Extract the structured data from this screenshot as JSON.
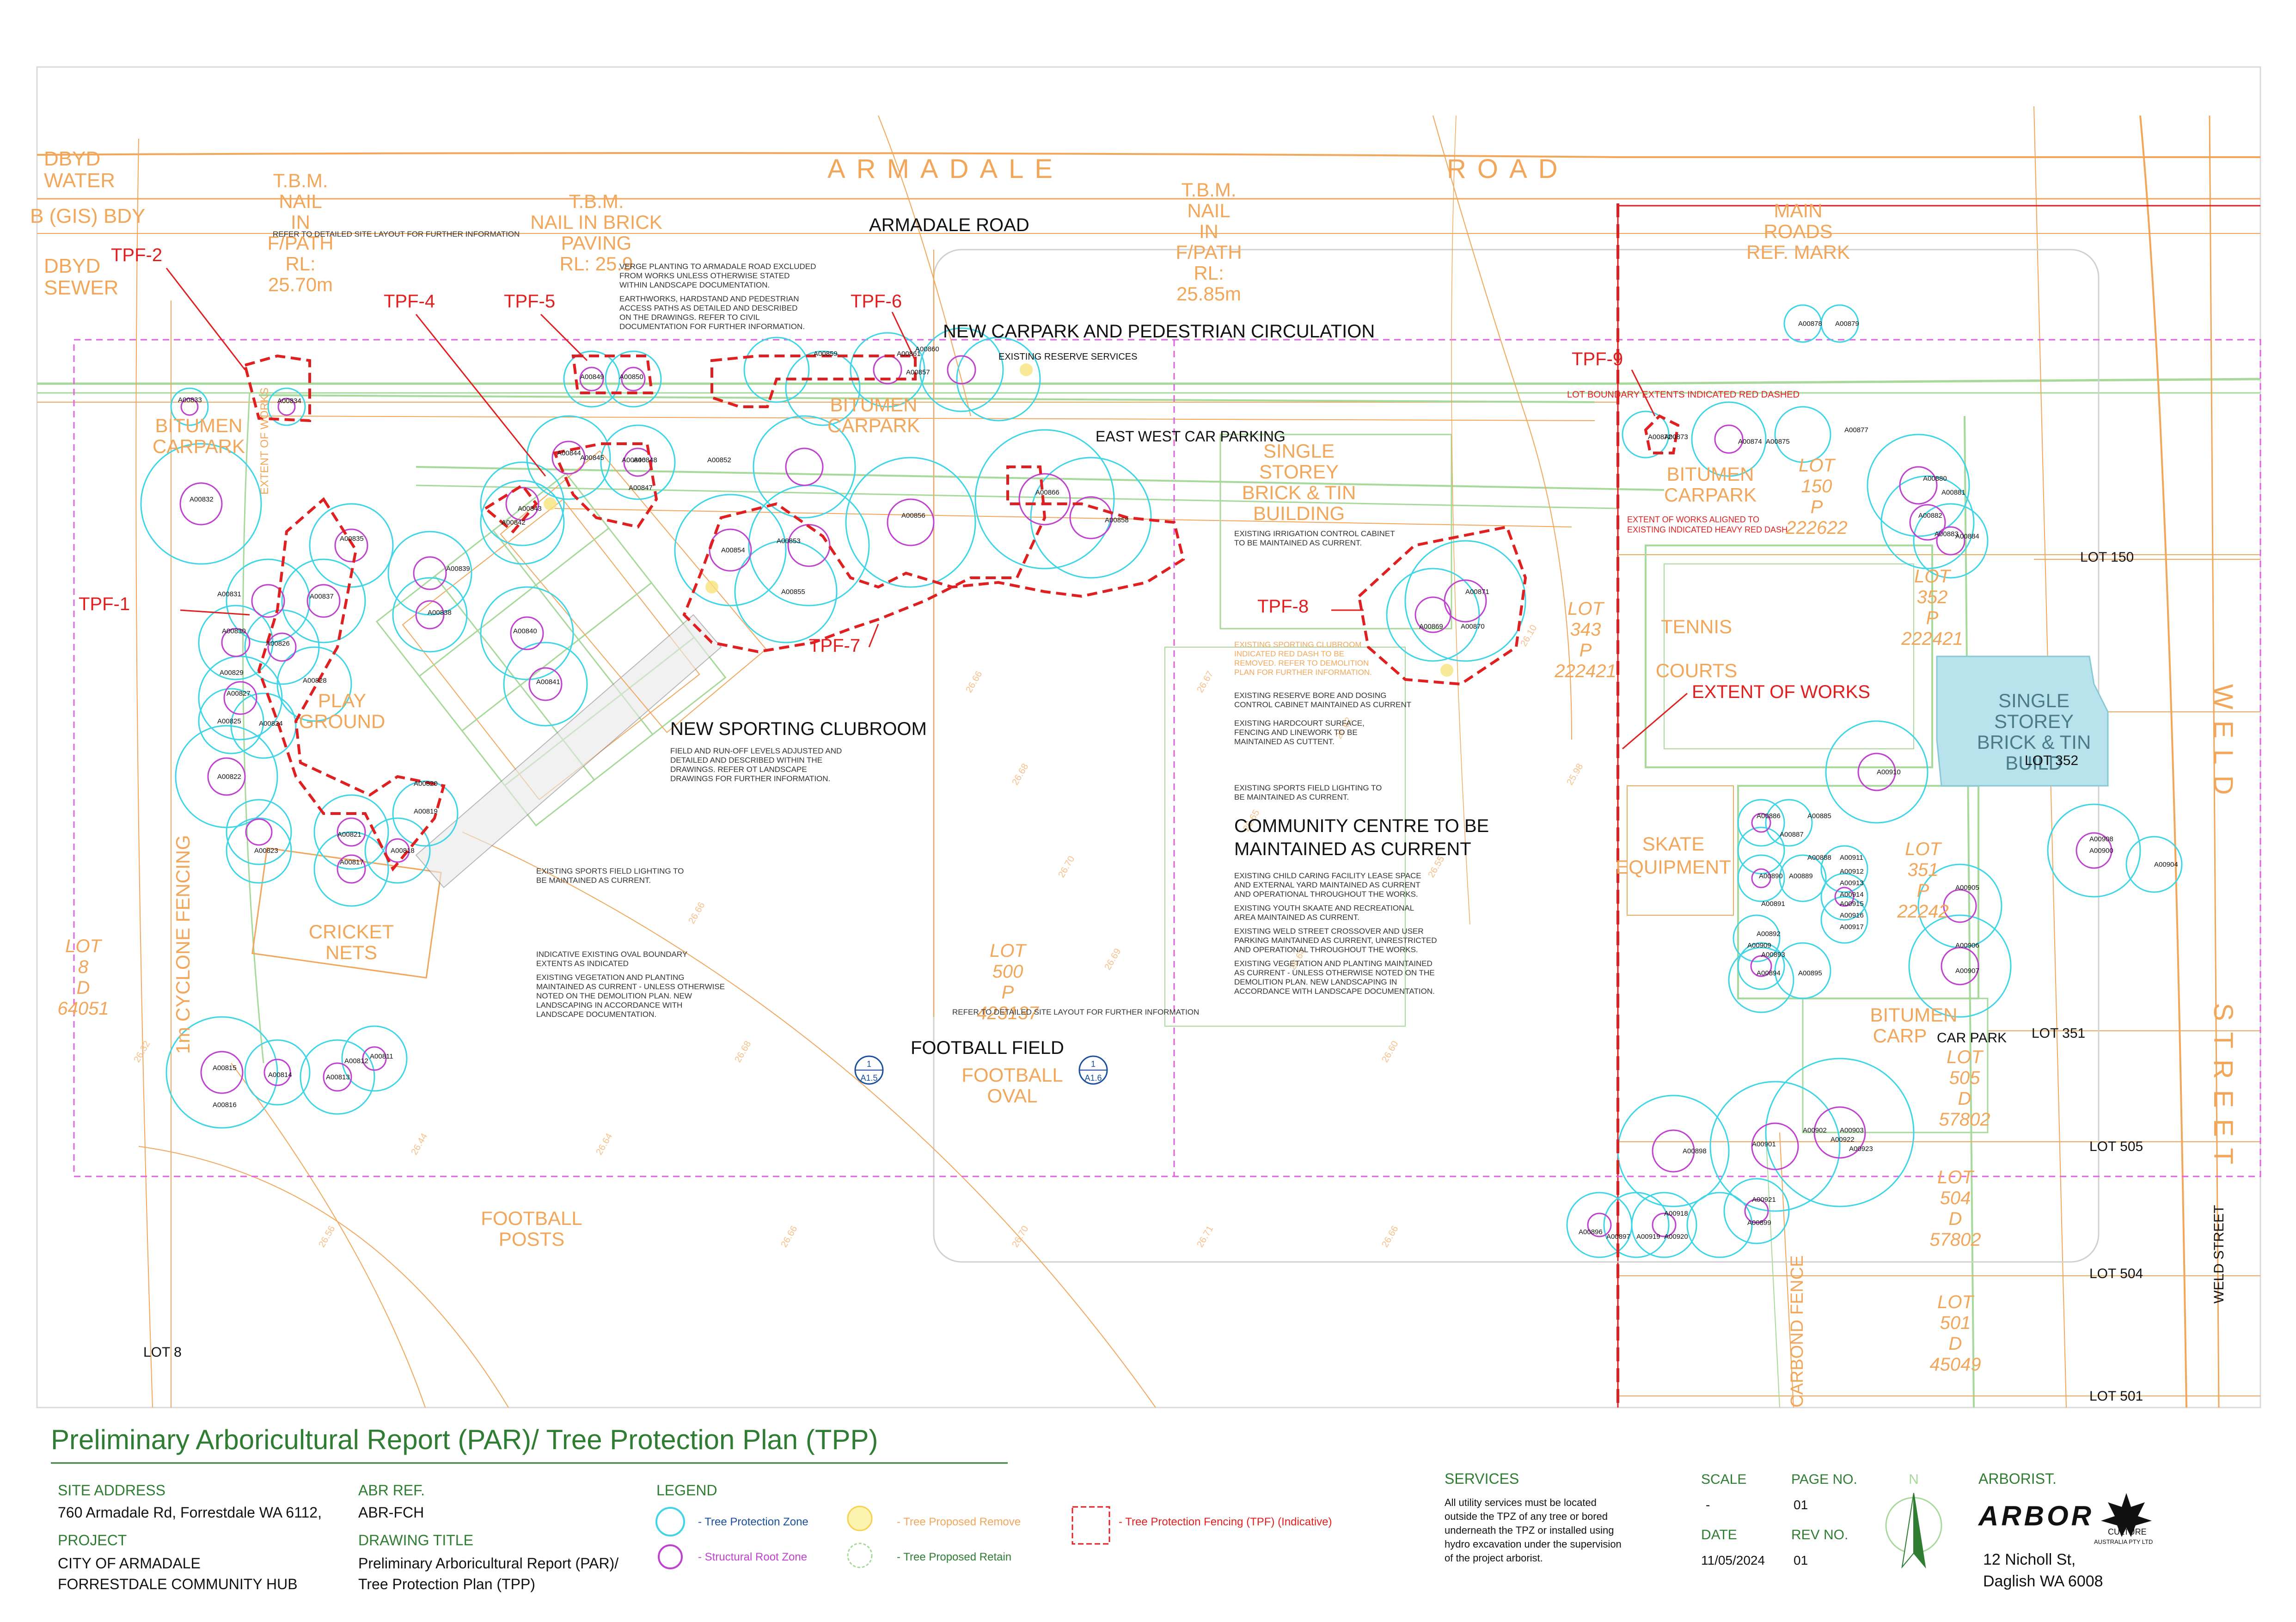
{
  "plan": {
    "road_name_spaced_1": "ARMADALE",
    "road_name_spaced_2": "ROAD",
    "road_name": "ARMADALE ROAD",
    "street_name_vertical_1": "WELD",
    "street_name_vertical_2": "STREET",
    "weld_street_label": "WELD STREET",
    "dbyd_water": [
      "DBYD",
      "WATER"
    ],
    "gis_bdy": "B (GIS) BDY",
    "dbyd_sewer": [
      "DBYD",
      "SEWER"
    ],
    "tbm_1": [
      "T.B.M.",
      "NAIL",
      "IN",
      "F/PATH",
      "RL:",
      "25.70m"
    ],
    "tbm_2": [
      "T.B.M.",
      "NAIL IN BRICK",
      "PAVING",
      "RL: 25.9"
    ],
    "tbm_3": [
      "T.B.M.",
      "NAIL",
      "IN",
      "F/PATH",
      "RL:",
      "25.85m"
    ],
    "main_roads": [
      "MAIN",
      "ROADS",
      "REF. MARK"
    ],
    "new_carpark": "NEW CARPARK AND PEDESTRIAN CIRCULATION",
    "east_west_parking": "EAST WEST  CAR PARKING",
    "existing_reserve_services": "EXISTING RESERVE SERVICES",
    "lot_boundary_note": "LOT BOUNDARY EXTENTS INDICATED RED DASHED",
    "extent_aligned_note": [
      "EXTENT OF WORKS ALIGNED TO",
      "EXISTING INDICATED HEAVY RED DASH"
    ],
    "bitumen_carpark_1": [
      "BITUMEN",
      "CARPARK"
    ],
    "bitumen_carpark_2": [
      "BITUMEN",
      "CARPARK"
    ],
    "bitumen_carpark_3": [
      "BITUMEN",
      "CARPARK"
    ],
    "bitumen_carpark_4": [
      "BITUMEN",
      "CARP"
    ],
    "car_park": "CAR PARK",
    "single_storey_1": [
      "SINGLE",
      "STOREY",
      "BRICK & TIN",
      "BUILDING"
    ],
    "single_storey_2": [
      "SINGLE",
      "STOREY",
      "BRICK & TIN",
      "BUILD"
    ],
    "tennis_courts": [
      "TENNIS",
      "COURTS"
    ],
    "skate_equipment": [
      "SKATE",
      "EQUIPMENT"
    ],
    "play_ground": [
      "PLAY",
      "GROUND"
    ],
    "cricket_nets": [
      "CRICKET",
      "NETS"
    ],
    "football_posts": [
      "FOOTBALL",
      "POSTS"
    ],
    "football_field": "FOOTBALL FIELD",
    "football_oval": [
      "FOOTBALL",
      "OVAL"
    ],
    "new_sporting_clubroom": "NEW SPORTING CLUBROOM",
    "community_centre": [
      "COMMUNITY CENTRE TO BE",
      "MAINTAINED AS CURRENT"
    ],
    "extent_of_works": "EXTENT OF WORKS",
    "extent_of_works_vertical": "EXTENT OF WORKS",
    "cyclone_fencing": "1m CYCLONE FENCING",
    "carbond_fence": "CARBOND FENCE",
    "lot_labels": {
      "lot_8_big": [
        "LOT",
        "8",
        "D",
        "64051"
      ],
      "lot_8": "LOT 8",
      "lot_500": [
        "LOT",
        "500",
        "P",
        "423137"
      ],
      "lot_343": [
        "LOT",
        "343",
        "P",
        "222421"
      ],
      "lot_150_big": [
        "LOT",
        "150",
        "P",
        "222622"
      ],
      "lot_352_big": [
        "LOT",
        "352",
        "P",
        "222421"
      ],
      "lot_351_big": [
        "LOT",
        "351",
        "P",
        "22242"
      ],
      "lot_505_big": [
        "LOT",
        "505",
        "D",
        "57802"
      ],
      "lot_504_big": [
        "LOT",
        "504",
        "D",
        "57802"
      ],
      "lot_501_big": [
        "LOT",
        "501",
        "D",
        "45049"
      ],
      "lot_150": "LOT 150",
      "lot_352": "LOT 352",
      "lot_351": "LOT 351",
      "lot_505": "LOT 505",
      "lot_504": "LOT 504",
      "lot_501": "LOT 501"
    },
    "tpf_labels": [
      "TPF-1",
      "TPF-2",
      "TPF-4",
      "TPF-5",
      "TPF-6",
      "TPF-7",
      "TPF-8",
      "TPF-9"
    ],
    "notes_top": [
      "REFER TO DETAILED SITE LAYOUT FOR FURTHER INFORMATION",
      "VERGE PLANTING TO ARMADALE ROAD EXCLUDED",
      "FROM WORKS UNLESS OTHERWISE STATED",
      "WITHIN LANDSCAPE DOCUMENTATION.",
      "EARTHWORKS, HARDSTAND AND PEDESTRIAN",
      "ACCESS PATHS AS DETAILED AND DESCRIBED",
      "ON THE DRAWINGS. REFER TO CIVIL",
      "DOCUMENTATION FOR FURTHER INFORMATION."
    ],
    "notes_irrigation": [
      "EXISTING IRRIGATION CONTROL CABINET",
      "TO BE MAINTAINED AS CURRENT."
    ],
    "notes_right": [
      "EXISTING SPORTING CLUBROOM",
      "INDICATED RED DASH TO BE",
      "REMOVED. REFER TO DEMOLITION",
      "PLAN FOR FURTHER INFORMATION.",
      "EXISTING RESERVE BORE AND DOSING",
      "CONTROL CABINET MAINTAINED AS CURRENT",
      "EXISTING HARDCOURT SURFACE,",
      "FENCING AND LINEWORK TO BE",
      "MAINTAINED AS CUTTENT.",
      "EXISTING SPORTS FIELD LIGHTING TO",
      "BE MAINTAINED AS CURRENT."
    ],
    "notes_community": [
      "EXISTING CHILD CARING FACILITY LEASE SPACE",
      "AND EXTERNAL YARD MAINTAINED AS CURRENT",
      "AND OPERATIONAL THROUGHOUT THE WORKS.",
      "EXISTING YOUTH SKAATE AND RECREATIONAL",
      "AREA MAINTAINED AS CURRENT.",
      "EXISTING WELD STREET CROSSOVER AND USER",
      "PARKING MAINTAINED AS CURRENT, UNRESTRICTED",
      "AND OPERATIONAL THROUGHOUT THE WORKS.",
      "EXISTING VEGETATION AND PLANTING MAINTAINED",
      "AS CURRENT - UNLESS OTHERWISE NOTED ON THE",
      "DEMOLITION PLAN. NEW LANDSCAPING IN",
      "ACCORDANCE WITH LANDSCAPE DOCUMENTATION."
    ],
    "notes_clubroom": [
      "FIELD AND RUN-OFF LEVELS ADJUSTED AND",
      "DETAILED AND DESCRIBED WITHIN THE",
      "DRAWINGS. REFER OT LANDSCAPE",
      "DRAWINGS FOR FURTHER INFORMATION."
    ],
    "notes_lighting": [
      "EXISTING SPORTS FIELD LIGHTING TO",
      "BE MAINTAINED AS CURRENT."
    ],
    "notes_oval": [
      "INDICATIVE EXISTING OVAL BOUNDARY",
      "EXTENTS AS INDICATED",
      "EXISTING VEGETATION AND PLANTING",
      "MAINTAINED AS CURRENT - UNLESS OTHERWISE",
      "NOTED ON THE DEMOLITION PLAN. NEW",
      "LANDSCAPING IN ACCORDANCE WITH",
      "LANDSCAPE DOCUMENTATION."
    ],
    "note_refer_detailed": "REFER TO DETAILED SITE LAYOUT FOR FURTHER INFORMATION",
    "section_marker": {
      "num": "1",
      "sheet_1": "A1.5",
      "sheet_2": "A1.6"
    }
  },
  "trees": [
    {
      "id": "A00833",
      "tpz": 1,
      "srz": 1
    },
    {
      "id": "A00834",
      "tpz": 1,
      "srz": 1
    },
    {
      "id": "A00832",
      "tpz": 1,
      "srz": 1
    },
    {
      "id": "A00835",
      "tpz": 1,
      "srz": 1
    },
    {
      "id": "A00831",
      "tpz": 1,
      "srz": 1
    },
    {
      "id": "A00837",
      "tpz": 1,
      "srz": 1
    },
    {
      "id": "A00830",
      "tpz": 1,
      "srz": 1
    },
    {
      "id": "A00826",
      "tpz": 1,
      "srz": 1
    },
    {
      "id": "A00829",
      "tpz": 1,
      "srz": 1
    },
    {
      "id": "A00827",
      "tpz": 1,
      "srz": 1
    },
    {
      "id": "A00828",
      "tpz": 1,
      "srz": 1
    },
    {
      "id": "A00825",
      "tpz": 1,
      "srz": 1
    },
    {
      "id": "A00824",
      "tpz": 1,
      "srz": 1
    },
    {
      "id": "A00822",
      "tpz": 1,
      "srz": 1
    },
    {
      "id": "A00821",
      "tpz": 1,
      "srz": 1
    },
    {
      "id": "A00823",
      "tpz": 1,
      "srz": 1
    },
    {
      "id": "A00817",
      "tpz": 1,
      "srz": 1
    },
    {
      "id": "A00818",
      "tpz": 1,
      "srz": 1
    },
    {
      "id": "A00819",
      "tpz": 1,
      "srz": 1
    },
    {
      "id": "A00820",
      "tpz": 1,
      "srz": 1
    },
    {
      "id": "A00815",
      "tpz": 1,
      "srz": 1
    },
    {
      "id": "A00816",
      "tpz": 1,
      "srz": 1
    },
    {
      "id": "A00814",
      "tpz": 1,
      "srz": 1
    },
    {
      "id": "A00813",
      "tpz": 1,
      "srz": 1
    },
    {
      "id": "A00812",
      "tpz": 1,
      "srz": 1
    },
    {
      "id": "A00811",
      "tpz": 1,
      "srz": 1
    },
    {
      "id": "A00839",
      "tpz": 1,
      "srz": 1
    },
    {
      "id": "A00838",
      "tpz": 1,
      "srz": 1
    },
    {
      "id": "A00840",
      "tpz": 1,
      "srz": 1
    },
    {
      "id": "A00841",
      "tpz": 1,
      "srz": 1
    },
    {
      "id": "A00842",
      "tpz": 1,
      "srz": 1
    },
    {
      "id": "A00843",
      "tpz": 1,
      "srz": 1
    },
    {
      "id": "A00844",
      "tpz": 1,
      "srz": 1
    },
    {
      "id": "A00845",
      "tpz": 1,
      "srz": 1
    },
    {
      "id": "A00846",
      "tpz": 1,
      "srz": 1
    },
    {
      "id": "A00847",
      "tpz": 1,
      "srz": 1
    },
    {
      "id": "A00848",
      "tpz": 1,
      "srz": 1
    },
    {
      "id": "A00849",
      "tpz": 1,
      "srz": 1
    },
    {
      "id": "A00850",
      "tpz": 1,
      "srz": 1
    },
    {
      "id": "A00852",
      "tpz": 1,
      "srz": 1
    },
    {
      "id": "A00853",
      "tpz": 1,
      "srz": 1
    },
    {
      "id": "A00854",
      "tpz": 1,
      "srz": 1
    },
    {
      "id": "A00855",
      "tpz": 1,
      "srz": 1
    },
    {
      "id": "A00856",
      "tpz": 1,
      "srz": 1
    },
    {
      "id": "A00857",
      "tpz": 1,
      "srz": 1
    },
    {
      "id": "A00858",
      "tpz": 1,
      "srz": 1
    },
    {
      "id": "A00859",
      "tpz": 1,
      "srz": 1
    },
    {
      "id": "A00860",
      "tpz": 1,
      "srz": 1
    },
    {
      "id": "A00861",
      "tpz": 1,
      "srz": 1
    },
    {
      "id": "A00866",
      "tpz": 1,
      "srz": 1
    },
    {
      "id": "A00869",
      "tpz": 1,
      "srz": 1
    },
    {
      "id": "A00870",
      "tpz": 1,
      "srz": 1
    },
    {
      "id": "A00871",
      "tpz": 1,
      "srz": 1
    },
    {
      "id": "A00872",
      "tpz": 1,
      "srz": 1
    },
    {
      "id": "A00873",
      "tpz": 1,
      "srz": 1
    },
    {
      "id": "A00874",
      "tpz": 1,
      "srz": 1
    },
    {
      "id": "A00875",
      "tpz": 1,
      "srz": 1
    },
    {
      "id": "A00877",
      "tpz": 1,
      "srz": 1
    },
    {
      "id": "A00878",
      "tpz": 1,
      "srz": 1
    },
    {
      "id": "A00879",
      "tpz": 1,
      "srz": 1
    },
    {
      "id": "A00880",
      "tpz": 1,
      "srz": 1
    },
    {
      "id": "A00881",
      "tpz": 1,
      "srz": 1
    },
    {
      "id": "A00882",
      "tpz": 1,
      "srz": 1
    },
    {
      "id": "A00883",
      "tpz": 1,
      "srz": 1
    },
    {
      "id": "A00884",
      "tpz": 1,
      "srz": 1
    },
    {
      "id": "A00885",
      "tpz": 1,
      "srz": 1
    },
    {
      "id": "A00886",
      "tpz": 1,
      "srz": 1
    },
    {
      "id": "A00887",
      "tpz": 1,
      "srz": 1
    },
    {
      "id": "A00888",
      "tpz": 1,
      "srz": 1
    },
    {
      "id": "A00889",
      "tpz": 1,
      "srz": 1
    },
    {
      "id": "A00890",
      "tpz": 1,
      "srz": 1
    },
    {
      "id": "A00891",
      "tpz": 1,
      "srz": 1
    },
    {
      "id": "A00892",
      "tpz": 1,
      "srz": 1
    },
    {
      "id": "A00893",
      "tpz": 1,
      "srz": 1
    },
    {
      "id": "A00894",
      "tpz": 1,
      "srz": 1
    },
    {
      "id": "A00895",
      "tpz": 1,
      "srz": 1
    },
    {
      "id": "A00896",
      "tpz": 1,
      "srz": 1
    },
    {
      "id": "A00897",
      "tpz": 1,
      "srz": 1
    },
    {
      "id": "A00898",
      "tpz": 1,
      "srz": 1
    },
    {
      "id": "A00899",
      "tpz": 1,
      "srz": 1
    },
    {
      "id": "A00900",
      "tpz": 1,
      "srz": 1
    },
    {
      "id": "A00901",
      "tpz": 1,
      "srz": 1
    },
    {
      "id": "A00902",
      "tpz": 1,
      "srz": 1
    },
    {
      "id": "A00903",
      "tpz": 1,
      "srz": 1
    },
    {
      "id": "A00904",
      "tpz": 1,
      "srz": 1
    },
    {
      "id": "A00905",
      "tpz": 1,
      "srz": 1
    },
    {
      "id": "A00906",
      "tpz": 1,
      "srz": 1
    },
    {
      "id": "A00907",
      "tpz": 1,
      "srz": 1
    },
    {
      "id": "A00908",
      "tpz": 1,
      "srz": 1
    },
    {
      "id": "A00909",
      "tpz": 1,
      "srz": 1
    },
    {
      "id": "A00910",
      "tpz": 1,
      "srz": 1
    },
    {
      "id": "A00911",
      "tpz": 1,
      "srz": 1
    },
    {
      "id": "A00912",
      "tpz": 1,
      "srz": 1
    },
    {
      "id": "A00913",
      "tpz": 1,
      "srz": 1
    },
    {
      "id": "A00914",
      "tpz": 1,
      "srz": 1
    },
    {
      "id": "A00915",
      "tpz": 1,
      "srz": 1
    },
    {
      "id": "A00916",
      "tpz": 1,
      "srz": 1
    },
    {
      "id": "A00917",
      "tpz": 1,
      "srz": 1
    },
    {
      "id": "A00918",
      "tpz": 1,
      "srz": 1
    },
    {
      "id": "A00919",
      "tpz": 1,
      "srz": 1
    },
    {
      "id": "A00920",
      "tpz": 1,
      "srz": 1
    },
    {
      "id": "A00921",
      "tpz": 1,
      "srz": 1
    },
    {
      "id": "A00922",
      "tpz": 1,
      "srz": 1
    },
    {
      "id": "A00923",
      "tpz": 1,
      "srz": 1
    }
  ],
  "title_block": {
    "title": "Preliminary Arboricultural Report (PAR)/ Tree Protection Plan (TPP)",
    "site_address_label": "SITE ADDRESS",
    "site_address": "760 Armadale Rd, Forrestdale WA 6112,",
    "abr_ref_label": "ABR REF.",
    "abr_ref": "ABR-FCH",
    "project_label": "PROJECT",
    "project_line1": "CITY OF ARMADALE",
    "project_line2": "FORRESTDALE COMMUNITY HUB",
    "drawing_title_label": "DRAWING TITLE",
    "drawing_title_line1": "Preliminary Arboricultural Report (PAR)/",
    "drawing_title_line2": "Tree Protection Plan (TPP)",
    "legend_label": "LEGEND",
    "legend": {
      "tpz": "- Tree Protection Zone",
      "srz": "- Structural Root Zone",
      "remove": "- Tree Proposed Remove",
      "retain": "- Tree Proposed Retain",
      "tpf": "- Tree Protection Fencing (TPF) (Indicative)"
    },
    "services_label": "SERVICES",
    "services_text": [
      "All utility services must be located",
      "outside the TPZ of any tree or bored",
      "underneath the TPZ or installed using",
      "hydro excavation under the supervision",
      "of the project arborist."
    ],
    "scale_label": "SCALE",
    "scale": "-",
    "page_no_label": "PAGE NO.",
    "page_no": "01",
    "date_label": "DATE",
    "date": "11/05/2024",
    "rev_no_label": "REV NO.",
    "rev_no": "01",
    "north": "N",
    "arborist_label": "ARBORIST.",
    "arborist_logo_text": "ARBOR",
    "arborist_logo_sub": "CULTURE",
    "arborist_logo_sub2": "AUSTRALIA PTY LTD",
    "arborist_address_line1": "12 Nicholl St,",
    "arborist_address_line2": "Daglish WA 6008"
  },
  "colors": {
    "orange": "#f2a65a",
    "green": "#a6d99a",
    "red": "#e02020",
    "cyan": "#3fd5e6",
    "magenta": "#c040d0",
    "dark_green": "#2e7d32",
    "pink_dash": "#e060e0",
    "blue_building": "#b9e3ec"
  }
}
